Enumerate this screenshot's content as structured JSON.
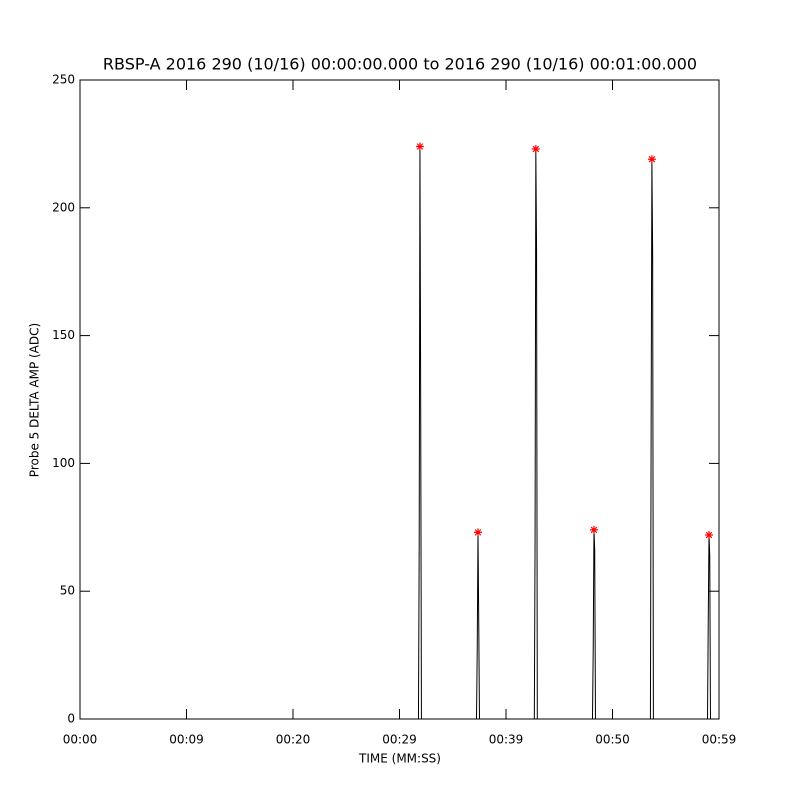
{
  "chart_data": {
    "type": "line",
    "title": "RBSP-A 2016 290 (10/16) 00:00:00.000 to 2016 290 (10/16) 00:01:00.000",
    "xlabel": "TIME (MM:SS)",
    "ylabel": "Probe 5 DELTA AMP (ADC)",
    "xlim": [
      0,
      60
    ],
    "ylim": [
      0,
      250
    ],
    "xticks": [
      {
        "value": 0,
        "label": "00:00"
      },
      {
        "value": 10,
        "label": "00:09"
      },
      {
        "value": 20,
        "label": "00:20"
      },
      {
        "value": 30,
        "label": "00:29"
      },
      {
        "value": 40,
        "label": "00:39"
      },
      {
        "value": 50,
        "label": "00:50"
      },
      {
        "value": 60,
        "label": "00:59"
      }
    ],
    "yticks": [
      0,
      50,
      100,
      150,
      200,
      250
    ],
    "series": [
      {
        "color": "#000000",
        "x": [
          0,
          31.78,
          31.85,
          31.92,
          31.99,
          32.06,
          37.23,
          37.3,
          37.37,
          37.44,
          37.51,
          42.66,
          42.73,
          42.8,
          42.87,
          42.94,
          48.12,
          48.19,
          48.26,
          48.33,
          48.4,
          53.56,
          53.63,
          53.7,
          53.77,
          53.84,
          58.92,
          58.99,
          59.06,
          59.13,
          59.2,
          60
        ],
        "values": [
          0,
          0,
          69,
          224,
          122,
          0,
          0,
          28,
          73,
          38,
          0,
          0,
          71,
          223,
          183,
          0,
          0,
          28,
          74,
          66,
          0,
          0,
          118,
          219,
          181,
          0,
          0,
          38,
          72,
          64,
          0,
          0
        ]
      },
      {
        "color": "#ff0000",
        "marker": "asterisk",
        "x": [
          31.92,
          37.37,
          42.8,
          48.26,
          53.7,
          59.06
        ],
        "values": [
          224,
          73,
          223,
          74,
          219,
          72
        ]
      }
    ]
  }
}
